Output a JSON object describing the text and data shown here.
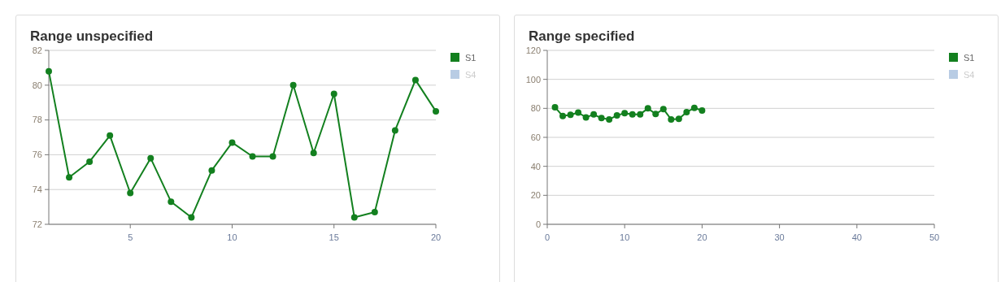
{
  "chart_data": [
    {
      "type": "line",
      "title": "Range unspecified",
      "x": [
        1,
        2,
        3,
        4,
        5,
        6,
        7,
        8,
        9,
        10,
        11,
        12,
        13,
        14,
        15,
        16,
        17,
        18,
        19,
        20
      ],
      "series": [
        {
          "name": "S1",
          "color": "#13801f",
          "values": [
            80.8,
            74.7,
            75.6,
            77.1,
            73.8,
            75.8,
            73.3,
            72.4,
            75.1,
            76.7,
            75.9,
            75.9,
            80.0,
            76.1,
            79.5,
            72.4,
            72.7,
            77.4,
            80.3,
            78.5
          ]
        },
        {
          "name": "S4",
          "color": "#b8cce4",
          "values": [
            null,
            null,
            null,
            null,
            null,
            null,
            null,
            null,
            null,
            null,
            null,
            null,
            null,
            null,
            null,
            null,
            null,
            null,
            null,
            null
          ]
        }
      ],
      "xlim": [
        1,
        20
      ],
      "xticks": [
        5,
        10,
        15,
        20
      ],
      "ylim": [
        72,
        82
      ],
      "yticks": [
        72,
        74,
        76,
        78,
        80,
        82
      ],
      "grid": "y",
      "legend": "right",
      "marker": "circle",
      "line_style": "solid"
    },
    {
      "type": "line",
      "title": "Range specified",
      "x": [
        1,
        2,
        3,
        4,
        5,
        6,
        7,
        8,
        9,
        10,
        11,
        12,
        13,
        14,
        15,
        16,
        17,
        18,
        19,
        20
      ],
      "series": [
        {
          "name": "S1",
          "color": "#13801f",
          "values": [
            80.8,
            74.7,
            75.6,
            77.1,
            73.8,
            75.8,
            73.3,
            72.4,
            75.1,
            76.7,
            75.9,
            75.9,
            80.0,
            76.1,
            79.5,
            72.4,
            72.7,
            77.4,
            80.3,
            78.5
          ]
        },
        {
          "name": "S4",
          "color": "#b8cce4",
          "values": [
            null,
            null,
            null,
            null,
            null,
            null,
            null,
            null,
            null,
            null,
            null,
            null,
            null,
            null,
            null,
            null,
            null,
            null,
            null,
            null
          ]
        }
      ],
      "xlim": [
        0,
        50
      ],
      "xticks": [
        0,
        10,
        20,
        30,
        40,
        50
      ],
      "ylim": [
        0,
        120
      ],
      "yticks": [
        0,
        20,
        40,
        60,
        80,
        100,
        120
      ],
      "grid": "y",
      "legend": "right",
      "marker": "circle",
      "line_style": "solid"
    }
  ]
}
